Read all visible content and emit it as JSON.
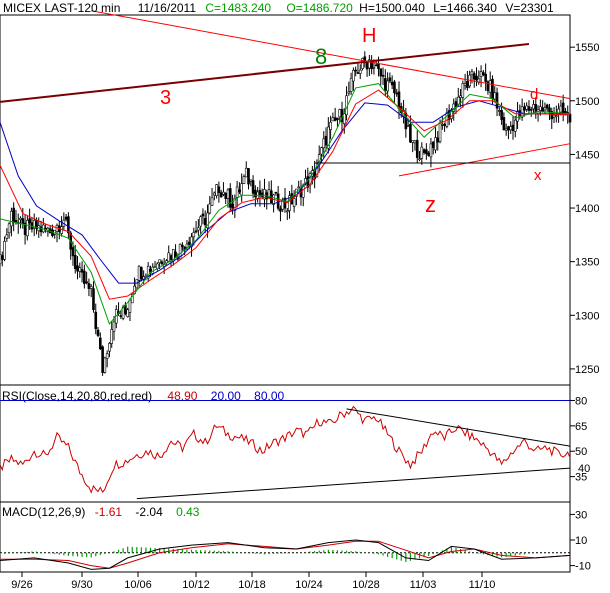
{
  "header": {
    "symbol": "MICEX LAST-120 min",
    "date": "11/16/2011",
    "close": "C=1483.240",
    "open": "O=1486.720",
    "high": "H=1500.040",
    "low": "L=1466.340",
    "volume": "V=23301"
  },
  "colors": {
    "candle": "#000000",
    "ma_fast": "#00a000",
    "ma_mid": "#ff0000",
    "ma_slow": "#0000cc",
    "channel_upper": "#7a0000",
    "annotation": "#ff0000",
    "wave8": "#008000",
    "rsi_line": "#cc0000",
    "macd_line": "#000000",
    "signal_line": "#cc0000",
    "histogram": "#00a000",
    "grid": "#000000"
  },
  "annotations": {
    "wave3": "3",
    "wave8": "8",
    "head": "H",
    "wave_z": "z",
    "wave_d": "d",
    "wave_x": "x"
  },
  "rsi_header": {
    "label": "RSI(Close,14,20,80,red,red)",
    "value": "48.90",
    "lower": "20.00",
    "upper": "80.00"
  },
  "macd_header": {
    "label": "MACD(12,26,9)",
    "macd": "-1.61",
    "signal": "-2.04",
    "hist": "0.43"
  },
  "chart_data": [
    {
      "type": "candlestick",
      "title": "MICEX LAST-120 min",
      "yticks": [
        1250,
        1300,
        1350,
        1400,
        1450,
        1500,
        1550
      ],
      "ylim": [
        1235,
        1580
      ],
      "xtick_labels": [
        "9/26",
        "9/30",
        "10/06",
        "10/12",
        "10/18",
        "10/24",
        "10/28",
        "11/03",
        "11/10"
      ],
      "close_path": [
        [
          0,
          1350
        ],
        [
          5,
          1395
        ],
        [
          10,
          1380
        ],
        [
          16,
          1382
        ],
        [
          22,
          1378
        ],
        [
          28,
          1390
        ],
        [
          34,
          1340
        ],
        [
          40,
          1320
        ],
        [
          45,
          1250
        ],
        [
          50,
          1300
        ],
        [
          55,
          1302
        ],
        [
          60,
          1340
        ],
        [
          66,
          1345
        ],
        [
          72,
          1355
        ],
        [
          78,
          1360
        ],
        [
          84,
          1375
        ],
        [
          90,
          1390
        ],
        [
          96,
          1420
        ],
        [
          102,
          1405
        ],
        [
          108,
          1430
        ],
        [
          114,
          1412
        ],
        [
          120,
          1408
        ],
        [
          126,
          1402
        ],
        [
          132,
          1418
        ],
        [
          138,
          1432
        ],
        [
          144,
          1472
        ],
        [
          150,
          1488
        ],
        [
          156,
          1528
        ],
        [
          162,
          1538
        ],
        [
          168,
          1520
        ],
        [
          174,
          1505
        ],
        [
          180,
          1462
        ],
        [
          186,
          1448
        ],
        [
          192,
          1468
        ],
        [
          198,
          1492
        ],
        [
          204,
          1514
        ],
        [
          210,
          1525
        ],
        [
          216,
          1508
        ],
        [
          222,
          1470
        ],
        [
          228,
          1488
        ],
        [
          234,
          1495
        ],
        [
          240,
          1490
        ],
        [
          246,
          1488
        ],
        [
          250,
          1483
        ]
      ],
      "ma_fast": [
        [
          0,
          1390
        ],
        [
          10,
          1385
        ],
        [
          20,
          1380
        ],
        [
          30,
          1372
        ],
        [
          40,
          1340
        ],
        [
          48,
          1292
        ],
        [
          56,
          1312
        ],
        [
          66,
          1340
        ],
        [
          76,
          1352
        ],
        [
          86,
          1370
        ],
        [
          96,
          1398
        ],
        [
          106,
          1412
        ],
        [
          116,
          1412
        ],
        [
          126,
          1406
        ],
        [
          136,
          1428
        ],
        [
          146,
          1466
        ],
        [
          156,
          1512
        ],
        [
          166,
          1516
        ],
        [
          176,
          1490
        ],
        [
          186,
          1466
        ],
        [
          196,
          1486
        ],
        [
          206,
          1506
        ],
        [
          216,
          1502
        ],
        [
          226,
          1484
        ],
        [
          236,
          1490
        ],
        [
          250,
          1488
        ]
      ],
      "ma_mid": [
        [
          0,
          1440
        ],
        [
          10,
          1395
        ],
        [
          20,
          1385
        ],
        [
          30,
          1378
        ],
        [
          40,
          1355
        ],
        [
          48,
          1315
        ],
        [
          56,
          1318
        ],
        [
          66,
          1333
        ],
        [
          76,
          1347
        ],
        [
          86,
          1363
        ],
        [
          96,
          1390
        ],
        [
          106,
          1405
        ],
        [
          116,
          1410
        ],
        [
          126,
          1405
        ],
        [
          136,
          1422
        ],
        [
          146,
          1453
        ],
        [
          156,
          1497
        ],
        [
          166,
          1510
        ],
        [
          176,
          1492
        ],
        [
          186,
          1472
        ],
        [
          196,
          1482
        ],
        [
          206,
          1500
        ],
        [
          216,
          1500
        ],
        [
          226,
          1488
        ],
        [
          236,
          1488
        ],
        [
          250,
          1487
        ]
      ],
      "ma_slow": [
        [
          0,
          1480
        ],
        [
          8,
          1430
        ],
        [
          16,
          1402
        ],
        [
          26,
          1388
        ],
        [
          36,
          1375
        ],
        [
          44,
          1352
        ],
        [
          52,
          1330
        ],
        [
          60,
          1330
        ],
        [
          70,
          1342
        ],
        [
          80,
          1356
        ],
        [
          90,
          1378
        ],
        [
          100,
          1396
        ],
        [
          110,
          1404
        ],
        [
          120,
          1404
        ],
        [
          130,
          1412
        ],
        [
          140,
          1440
        ],
        [
          150,
          1472
        ],
        [
          160,
          1498
        ],
        [
          170,
          1496
        ],
        [
          180,
          1480
        ],
        [
          190,
          1480
        ],
        [
          200,
          1494
        ],
        [
          210,
          1500
        ],
        [
          220,
          1494
        ],
        [
          230,
          1488
        ],
        [
          250,
          1488
        ]
      ],
      "trendlines": [
        {
          "name": "channel-upper",
          "from": [
            0,
            1499
          ],
          "to": [
            232,
            1553
          ]
        },
        {
          "name": "resistance",
          "from": [
            40,
            1584
          ],
          "to": [
            250,
            1502
          ]
        },
        {
          "name": "support",
          "from": [
            175,
            1430
          ],
          "to": [
            250,
            1460
          ]
        },
        {
          "name": "horizontal",
          "from": [
            138,
            1442
          ],
          "to": [
            250,
            1442
          ]
        }
      ]
    },
    {
      "type": "line",
      "title": "RSI(Close,14,20,80,red,red)",
      "ylim": [
        20,
        85
      ],
      "yticks": [
        35,
        50,
        65,
        80
      ],
      "yticks_extra": [
        {
          "label": "40",
          "value": 40
        }
      ],
      "levels": [
        20,
        80
      ],
      "values": [
        [
          0,
          40
        ],
        [
          5,
          45
        ],
        [
          10,
          42
        ],
        [
          15,
          50
        ],
        [
          20,
          47
        ],
        [
          25,
          58
        ],
        [
          30,
          52
        ],
        [
          35,
          38
        ],
        [
          40,
          28
        ],
        [
          45,
          26
        ],
        [
          50,
          42
        ],
        [
          55,
          44
        ],
        [
          60,
          48
        ],
        [
          65,
          50
        ],
        [
          70,
          47
        ],
        [
          75,
          56
        ],
        [
          80,
          52
        ],
        [
          85,
          60
        ],
        [
          90,
          55
        ],
        [
          95,
          65
        ],
        [
          100,
          60
        ],
        [
          105,
          58
        ],
        [
          110,
          55
        ],
        [
          115,
          50
        ],
        [
          120,
          55
        ],
        [
          125,
          58
        ],
        [
          130,
          62
        ],
        [
          135,
          60
        ],
        [
          140,
          68
        ],
        [
          145,
          66
        ],
        [
          150,
          72
        ],
        [
          155,
          75
        ],
        [
          160,
          68
        ],
        [
          165,
          70
        ],
        [
          170,
          60
        ],
        [
          175,
          50
        ],
        [
          180,
          42
        ],
        [
          185,
          50
        ],
        [
          190,
          62
        ],
        [
          195,
          58
        ],
        [
          200,
          64
        ],
        [
          205,
          60
        ],
        [
          210,
          56
        ],
        [
          215,
          50
        ],
        [
          220,
          42
        ],
        [
          225,
          50
        ],
        [
          230,
          56
        ],
        [
          235,
          50
        ],
        [
          240,
          52
        ],
        [
          245,
          48
        ],
        [
          250,
          49
        ]
      ],
      "trendlines": [
        {
          "name": "rsi-resistance",
          "from": [
            152,
            75
          ],
          "to": [
            250,
            53
          ]
        },
        {
          "name": "rsi-support",
          "from": [
            60,
            22
          ],
          "to": [
            250,
            40
          ]
        }
      ]
    },
    {
      "type": "line",
      "title": "MACD(12,26,9)",
      "ylim": [
        -15,
        35
      ],
      "yticks": [
        -10,
        10,
        30
      ],
      "macd": [
        [
          0,
          -6
        ],
        [
          15,
          -4
        ],
        [
          30,
          -8
        ],
        [
          40,
          -13
        ],
        [
          48,
          -12
        ],
        [
          56,
          -4
        ],
        [
          70,
          3
        ],
        [
          84,
          6
        ],
        [
          100,
          8
        ],
        [
          116,
          4
        ],
        [
          130,
          3
        ],
        [
          144,
          8
        ],
        [
          156,
          10
        ],
        [
          166,
          8
        ],
        [
          178,
          -4
        ],
        [
          188,
          -6
        ],
        [
          198,
          5
        ],
        [
          208,
          3
        ],
        [
          220,
          -5
        ],
        [
          235,
          -4
        ],
        [
          250,
          -2
        ]
      ],
      "signal": [
        [
          0,
          -5
        ],
        [
          15,
          -5
        ],
        [
          30,
          -6
        ],
        [
          40,
          -10
        ],
        [
          48,
          -12
        ],
        [
          56,
          -8
        ],
        [
          70,
          0
        ],
        [
          84,
          4
        ],
        [
          100,
          7
        ],
        [
          116,
          5
        ],
        [
          130,
          3
        ],
        [
          144,
          6
        ],
        [
          156,
          9
        ],
        [
          166,
          9
        ],
        [
          178,
          2
        ],
        [
          188,
          -4
        ],
        [
          198,
          1
        ],
        [
          208,
          3
        ],
        [
          220,
          -2
        ],
        [
          235,
          -4
        ],
        [
          250,
          -2
        ]
      ]
    }
  ]
}
